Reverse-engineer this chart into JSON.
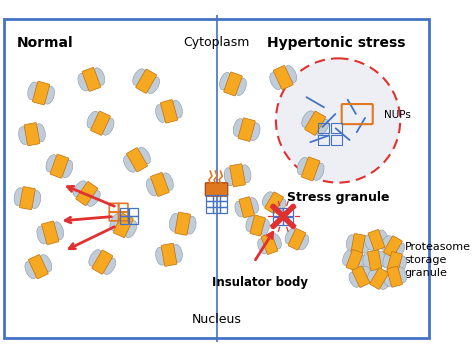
{
  "bg_color": "#ffffff",
  "border_color": "#4472c4",
  "label_normal": "Normal",
  "label_hypertonic": "Hypertonic stress",
  "label_cytoplasm": "Cytoplasm",
  "label_nucleus": "Nucleus",
  "label_stress_granule": "Stress granule",
  "label_insulator_body": "Insulator body",
  "label_psg": "Proteasome\nstorage\ngranule",
  "label_nups": "NUPs",
  "yellow": "#f5a820",
  "gray": "#c0ccd8",
  "blue": "#4472c4",
  "red": "#e03030",
  "orange": "#e07820",
  "light_gray_bg": "#e8ecf2"
}
